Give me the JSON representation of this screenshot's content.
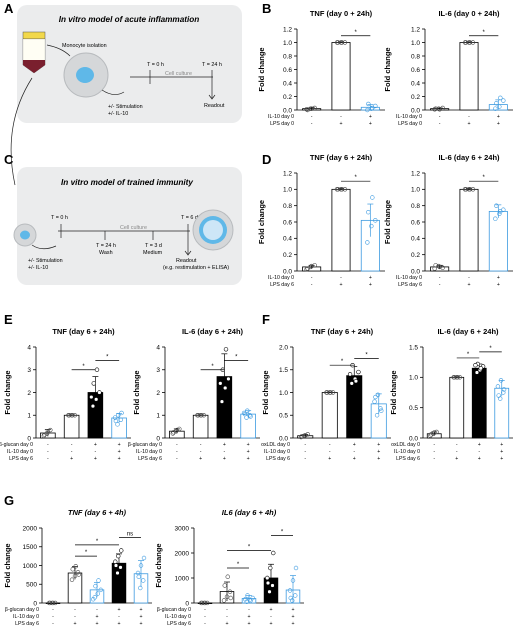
{
  "colors": {
    "white": "#ffffff",
    "black": "#000000",
    "blue": "#3c9ae0",
    "panel_bg": "#ebeced",
    "cell": "#cde6f7",
    "grey": "#909090"
  },
  "panel_letters": [
    "A",
    "B",
    "C",
    "D",
    "E",
    "F",
    "G"
  ],
  "diagram_a": {
    "title": "In vitro model of acute inflammation",
    "isolation": "Monocyte isolation",
    "culture": "Cell culture",
    "t0": "T = 0 h",
    "t24": "T = 24 h",
    "stim1": "+/- Stimulation",
    "stim2": "+/- IL-10",
    "readout": "Readout"
  },
  "diagram_c": {
    "title": "In vitro model of trained immunity",
    "t0": "T = 0 h",
    "culture": "Cell culture",
    "t24": "T = 24 h",
    "wash": "Wash",
    "t3d": "T = 3 d",
    "medium": "Medium",
    "t6d": "T = 6 d",
    "stim1": "+/- Stimulation",
    "stim2": "+/- IL-10",
    "readout": "Readout",
    "readout2": "(e.g. restimulation + ELISA)"
  },
  "chart_data": [
    {
      "panel": "B",
      "type": "bar",
      "title": "TNF (day 0 + 24h)",
      "ylabel": "Fold change",
      "ylim": [
        0,
        1.2
      ],
      "yticks": [
        "0.0",
        "0.2",
        "0.4",
        "0.6",
        "0.8",
        "1.0",
        "1.2"
      ],
      "conditions": [
        {
          "label": "IL-10 day 0",
          "signs": [
            "-",
            "-",
            "+"
          ]
        },
        {
          "label": "LPS day 0",
          "signs": [
            "-",
            "+",
            "+"
          ]
        }
      ],
      "bars": [
        {
          "value": 0.02,
          "err": 0.02,
          "fill": "white",
          "points": [
            0.01,
            0.02,
            0.03,
            0.0,
            0.02
          ]
        },
        {
          "value": 1.0,
          "err": 0.01,
          "fill": "white",
          "points": [
            1.0,
            1.0,
            1.0,
            1.0,
            1.0
          ]
        },
        {
          "value": 0.04,
          "err": 0.04,
          "fill": "white",
          "points": [
            0.0,
            0.02,
            0.06,
            0.09,
            0.03
          ]
        }
      ],
      "sig": [
        {
          "from": 1,
          "to": 2,
          "level": 1.1,
          "label": "*"
        }
      ]
    },
    {
      "panel": "B",
      "type": "bar",
      "title": "IL-6 (day 0 + 24h)",
      "ylabel": "Fold change",
      "ylim": [
        0,
        1.2
      ],
      "yticks": [
        "0.0",
        "0.2",
        "0.4",
        "0.6",
        "0.8",
        "1.0",
        "1.2"
      ],
      "conditions": [
        {
          "label": "IL-10 day 0",
          "signs": [
            "-",
            "-",
            "+"
          ]
        },
        {
          "label": "LPS day 0",
          "signs": [
            "-",
            "+",
            "+"
          ]
        }
      ],
      "bars": [
        {
          "value": 0.02,
          "err": 0.01,
          "fill": "white",
          "points": [
            0.01,
            0.02,
            0.03,
            0.02,
            0.01
          ]
        },
        {
          "value": 1.0,
          "err": 0.01,
          "fill": "white",
          "points": [
            1.0,
            1.0,
            1.0,
            1.0,
            1.0
          ]
        },
        {
          "value": 0.08,
          "err": 0.07,
          "fill": "white",
          "points": [
            0.02,
            0.05,
            0.14,
            0.1,
            0.18
          ]
        }
      ],
      "sig": [
        {
          "from": 1,
          "to": 2,
          "level": 1.1,
          "label": "*"
        }
      ]
    },
    {
      "panel": "D",
      "type": "bar",
      "title": "TNF (day 6 + 24h)",
      "ylabel": "Fold change",
      "ylim": [
        0,
        1.2
      ],
      "yticks": [
        "0.0",
        "0.2",
        "0.4",
        "0.6",
        "0.8",
        "1.0",
        "1.2"
      ],
      "conditions": [
        {
          "label": "IL-10 day 0",
          "signs": [
            "-",
            "-",
            "+"
          ]
        },
        {
          "label": "LPS day 6",
          "signs": [
            "-",
            "+",
            "+"
          ]
        }
      ],
      "bars": [
        {
          "value": 0.05,
          "err": 0.02,
          "fill": "white",
          "points": [
            0.02,
            0.05,
            0.07,
            0.03,
            0.06
          ]
        },
        {
          "value": 1.0,
          "err": 0.01,
          "fill": "white",
          "points": [
            1.0,
            1.0,
            1.0,
            1.0,
            1.0
          ]
        },
        {
          "value": 0.62,
          "err": 0.2,
          "fill": "white",
          "points": [
            0.35,
            0.55,
            0.62,
            0.72,
            0.9
          ]
        }
      ],
      "sig": [
        {
          "from": 1,
          "to": 2,
          "level": 1.1,
          "label": "*"
        }
      ]
    },
    {
      "panel": "D",
      "type": "bar",
      "title": "IL-6 (day 6 + 24h)",
      "ylabel": "Fold change",
      "ylim": [
        0,
        1.2
      ],
      "yticks": [
        "0.0",
        "0.2",
        "0.4",
        "0.6",
        "0.8",
        "1.0",
        "1.2"
      ],
      "conditions": [
        {
          "label": "IL-10 day 0",
          "signs": [
            "-",
            "-",
            "+"
          ]
        },
        {
          "label": "LPS day 6",
          "signs": [
            "-",
            "+",
            "+"
          ]
        }
      ],
      "bars": [
        {
          "value": 0.05,
          "err": 0.02,
          "fill": "white",
          "points": [
            0.03,
            0.06,
            0.04,
            0.07,
            0.05
          ]
        },
        {
          "value": 1.0,
          "err": 0.01,
          "fill": "white",
          "points": [
            1.0,
            1.0,
            1.0,
            1.0,
            1.0
          ]
        },
        {
          "value": 0.73,
          "err": 0.08,
          "fill": "white",
          "points": [
            0.64,
            0.7,
            0.75,
            0.8,
            0.73
          ]
        }
      ],
      "sig": [
        {
          "from": 1,
          "to": 2,
          "level": 1.1,
          "label": "*"
        }
      ]
    },
    {
      "panel": "E",
      "type": "bar",
      "title": "TNF (day 6 + 24h)",
      "ylabel": "Fold change",
      "ylim": [
        0,
        4
      ],
      "yticks": [
        "0",
        "1",
        "2",
        "3",
        "4"
      ],
      "conditions": [
        {
          "label": "β-glucan day 0",
          "signs": [
            "-",
            "-",
            "+",
            "+"
          ]
        },
        {
          "label": "IL-10 day 0",
          "signs": [
            "-",
            "-",
            "-",
            "+"
          ]
        },
        {
          "label": "LPS day 6",
          "signs": [
            "-",
            "+",
            "+",
            "+"
          ]
        }
      ],
      "bars": [
        {
          "value": 0.22,
          "err": 0.15,
          "fill": "white",
          "points": [
            0.1,
            0.2,
            0.35,
            0.15,
            0.3
          ]
        },
        {
          "value": 1.0,
          "err": 0.02,
          "fill": "white",
          "points": [
            1.0,
            1.0,
            1.0,
            1.0,
            1.0
          ]
        },
        {
          "value": 2.0,
          "err": 0.7,
          "fill": "black",
          "points": [
            1.4,
            1.7,
            2.0,
            2.4,
            3.0,
            1.8
          ]
        },
        {
          "value": 0.88,
          "err": 0.2,
          "fill": "white",
          "points": [
            0.6,
            0.8,
            0.9,
            1.0,
            1.1,
            0.75
          ]
        }
      ],
      "sig": [
        {
          "from": 1,
          "to": 2,
          "level": 3.0,
          "label": "*"
        },
        {
          "from": 2,
          "to": 3,
          "level": 3.4,
          "label": "*"
        }
      ]
    },
    {
      "panel": "E",
      "type": "bar",
      "title": "IL-6 (day 6 + 24h)",
      "ylabel": "Fold change",
      "ylim": [
        0,
        4
      ],
      "yticks": [
        "0",
        "1",
        "2",
        "3",
        "4"
      ],
      "conditions": [
        {
          "label": "β-glucan day 0",
          "signs": [
            "-",
            "-",
            "+",
            "+"
          ]
        },
        {
          "label": "IL-10 day 0",
          "signs": [
            "-",
            "-",
            "-",
            "+"
          ]
        },
        {
          "label": "LPS day 6",
          "signs": [
            "-",
            "+",
            "+",
            "+"
          ]
        }
      ],
      "bars": [
        {
          "value": 0.3,
          "err": 0.1,
          "fill": "white",
          "points": [
            0.2,
            0.3,
            0.4,
            0.25,
            0.35
          ]
        },
        {
          "value": 1.0,
          "err": 0.02,
          "fill": "white",
          "points": [
            1.0,
            1.0,
            1.0,
            1.0,
            1.0
          ]
        },
        {
          "value": 2.7,
          "err": 1.0,
          "fill": "black",
          "points": [
            1.6,
            2.2,
            2.6,
            3.0,
            3.9,
            2.4
          ]
        },
        {
          "value": 1.05,
          "err": 0.15,
          "fill": "white",
          "points": [
            0.9,
            1.0,
            1.1,
            1.2,
            0.95,
            1.05
          ]
        }
      ],
      "sig": [
        {
          "from": 1,
          "to": 2,
          "level": 3.0,
          "label": "*"
        },
        {
          "from": 2,
          "to": 3,
          "level": 3.4,
          "label": "*"
        }
      ]
    },
    {
      "panel": "F",
      "type": "bar",
      "title": "TNF (day 6 + 24h)",
      "ylabel": "Fold change",
      "ylim": [
        0,
        2.0
      ],
      "yticks": [
        "0.0",
        "0.5",
        "1.0",
        "1.5",
        "2.0"
      ],
      "conditions": [
        {
          "label": "oxLDL day 0",
          "signs": [
            "-",
            "-",
            "+",
            "+"
          ]
        },
        {
          "label": "IL-10 day 0",
          "signs": [
            "-",
            "-",
            "-",
            "+"
          ]
        },
        {
          "label": "LPS day 6",
          "signs": [
            "-",
            "+",
            "+",
            "+"
          ]
        }
      ],
      "bars": [
        {
          "value": 0.05,
          "err": 0.03,
          "fill": "white",
          "points": [
            0.02,
            0.05,
            0.08,
            0.04,
            0.06
          ]
        },
        {
          "value": 1.0,
          "err": 0.01,
          "fill": "white",
          "points": [
            1.0,
            1.0,
            1.0,
            1.0,
            1.0
          ]
        },
        {
          "value": 1.37,
          "err": 0.2,
          "fill": "black",
          "points": [
            1.2,
            1.3,
            1.45,
            1.6,
            1.25,
            1.4
          ]
        },
        {
          "value": 0.75,
          "err": 0.22,
          "fill": "white",
          "points": [
            0.5,
            0.65,
            0.8,
            0.95,
            0.6,
            0.9
          ]
        }
      ],
      "sig": [
        {
          "from": 1,
          "to": 2,
          "level": 1.6,
          "label": "*"
        },
        {
          "from": 2,
          "to": 3,
          "level": 1.75,
          "label": "*"
        }
      ]
    },
    {
      "panel": "F",
      "type": "bar",
      "title": "IL-6 (day 6 + 24h)",
      "ylabel": "Fold change",
      "ylim": [
        0,
        1.5
      ],
      "yticks": [
        "0.0",
        "0.5",
        "1.0",
        "1.5"
      ],
      "conditions": [
        {
          "label": "oxLDL day 0",
          "signs": [
            "-",
            "-",
            "+",
            "+"
          ]
        },
        {
          "label": "IL-10 day 0",
          "signs": [
            "-",
            "-",
            "-",
            "+"
          ]
        },
        {
          "label": "LPS day 6",
          "signs": [
            "-",
            "+",
            "+",
            "+"
          ]
        }
      ],
      "bars": [
        {
          "value": 0.07,
          "err": 0.03,
          "fill": "white",
          "points": [
            0.04,
            0.07,
            0.1,
            0.06,
            0.09
          ]
        },
        {
          "value": 1.0,
          "err": 0.01,
          "fill": "white",
          "points": [
            1.0,
            1.0,
            1.0,
            1.0,
            1.0
          ]
        },
        {
          "value": 1.15,
          "err": 0.07,
          "fill": "black",
          "points": [
            1.08,
            1.12,
            1.18,
            1.22,
            1.15,
            1.2
          ]
        },
        {
          "value": 0.82,
          "err": 0.13,
          "fill": "white",
          "points": [
            0.65,
            0.75,
            0.85,
            0.95,
            0.8,
            0.7
          ]
        }
      ],
      "sig": [
        {
          "from": 1,
          "to": 2,
          "level": 1.32,
          "label": "*"
        },
        {
          "from": 2,
          "to": 3,
          "level": 1.42,
          "label": "*"
        }
      ]
    },
    {
      "panel": "G",
      "type": "bar",
      "title": "TNF (day 6 + 4h)",
      "ylabel": "Fold change",
      "ylim": [
        0,
        2000
      ],
      "yticks": [
        "0",
        "500",
        "1000",
        "1500",
        "2000"
      ],
      "conditions": [
        {
          "label": "β-glucan day 0",
          "signs": [
            "-",
            "-",
            "-",
            "+",
            "+"
          ]
        },
        {
          "label": "IL-10 day 0",
          "signs": [
            "-",
            "-",
            "+",
            "-",
            "+"
          ]
        },
        {
          "label": "LPS day 6",
          "signs": [
            "-",
            "+",
            "+",
            "+",
            "+"
          ]
        }
      ],
      "bars": [
        {
          "value": 1,
          "err": 0,
          "fill": "white",
          "points": [
            1,
            1,
            1,
            1,
            1
          ]
        },
        {
          "value": 800,
          "err": 170,
          "fill": "white",
          "points": [
            620,
            720,
            820,
            900,
            980,
            760
          ]
        },
        {
          "value": 350,
          "err": 200,
          "fill": "white",
          "points": [
            150,
            250,
            350,
            450,
            600,
            100
          ]
        },
        {
          "value": 1060,
          "err": 250,
          "fill": "black",
          "points": [
            800,
            950,
            1100,
            1250,
            1400,
            1000
          ]
        },
        {
          "value": 780,
          "err": 350,
          "fill": "white",
          "points": [
            400,
            600,
            800,
            1000,
            1200,
            700
          ]
        }
      ],
      "sig": [
        {
          "from": 1,
          "to": 2,
          "level": 1250,
          "label": "*"
        },
        {
          "from": 1,
          "to": 3,
          "level": 1550,
          "label": "*"
        },
        {
          "from": 3,
          "to": 4,
          "level": 1750,
          "label": "ns"
        }
      ]
    },
    {
      "panel": "G",
      "type": "bar",
      "title": "IL6 (day 6 + 4h)",
      "ylabel": "Fold change",
      "ylim": [
        0,
        3000
      ],
      "yticks": [
        "0",
        "1000",
        "2000",
        "3000"
      ],
      "conditions": [
        {
          "label": "β-glucan day 0",
          "signs": [
            "-",
            "-",
            "-",
            "+",
            "+"
          ]
        },
        {
          "label": "IL-10 day 0",
          "signs": [
            "-",
            "-",
            "+",
            "-",
            "+"
          ]
        },
        {
          "label": "LPS day 6",
          "signs": [
            "-",
            "+",
            "+",
            "+",
            "+"
          ]
        }
      ],
      "bars": [
        {
          "value": 1,
          "err": 0,
          "fill": "white",
          "points": [
            1,
            1,
            1,
            1,
            1
          ]
        },
        {
          "value": 460,
          "err": 380,
          "fill": "white",
          "points": [
            100,
            250,
            450,
            700,
            1050,
            200
          ]
        },
        {
          "value": 180,
          "err": 120,
          "fill": "white",
          "points": [
            50,
            120,
            200,
            300,
            90,
            150
          ]
        },
        {
          "value": 1000,
          "err": 550,
          "fill": "black",
          "points": [
            450,
            700,
            1000,
            1400,
            2000,
            800
          ]
        },
        {
          "value": 520,
          "err": 580,
          "fill": "white",
          "points": [
            100,
            300,
            500,
            900,
            1400,
            200
          ]
        }
      ],
      "sig": [
        {
          "from": 1,
          "to": 2,
          "level": 1400,
          "label": "*"
        },
        {
          "from": 1,
          "to": 3,
          "level": 2100,
          "label": "*"
        },
        {
          "from": 3,
          "to": 4,
          "level": 2700,
          "label": "*"
        }
      ]
    }
  ]
}
